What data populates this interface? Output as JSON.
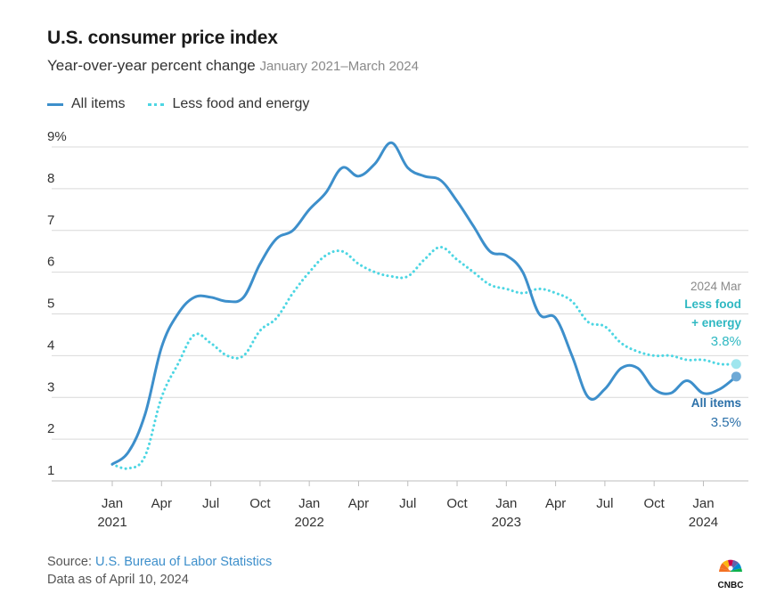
{
  "header": {
    "title": "U.S. consumer price index",
    "subtitle": "Year-over-year percent change",
    "subtitle_range": "January 2021–March 2024"
  },
  "legend": {
    "all_items": "All items",
    "core": "Less food and energy"
  },
  "annotations": {
    "date": "2024 Mar",
    "core_label_1": "Less food",
    "core_label_2": "+ energy",
    "core_value": "3.8%",
    "all_label": "All items",
    "all_value": "3.5%"
  },
  "footer": {
    "source_prefix": "Source: ",
    "source_name": "U.S. Bureau of Labor Statistics",
    "date_note": "Data as of April 10, 2024"
  },
  "logo": {
    "text": "CNBC"
  },
  "colors": {
    "all_items": "#3d8fcb",
    "core": "#4dd6e3",
    "all_label": "#2a6fa8",
    "core_label": "#2fb8c2",
    "grid": "#d9d9d9"
  },
  "chart_data": {
    "type": "line",
    "title": "U.S. consumer price index",
    "subtitle": "Year-over-year percent change January 2021–March 2024",
    "ylabel": "",
    "xlabel": "",
    "ylim": [
      1,
      9
    ],
    "yticks": [
      1,
      2,
      3,
      4,
      5,
      6,
      7,
      8,
      9
    ],
    "ytick_labels": [
      "1",
      "2",
      "3",
      "4",
      "5",
      "6",
      "7",
      "8",
      "9%"
    ],
    "xticks": [
      {
        "index": 0,
        "label": "Jan",
        "year": "2021"
      },
      {
        "index": 3,
        "label": "Apr",
        "year": ""
      },
      {
        "index": 6,
        "label": "Jul",
        "year": ""
      },
      {
        "index": 9,
        "label": "Oct",
        "year": ""
      },
      {
        "index": 12,
        "label": "Jan",
        "year": "2022"
      },
      {
        "index": 15,
        "label": "Apr",
        "year": ""
      },
      {
        "index": 18,
        "label": "Jul",
        "year": ""
      },
      {
        "index": 21,
        "label": "Oct",
        "year": ""
      },
      {
        "index": 24,
        "label": "Jan",
        "year": "2023"
      },
      {
        "index": 27,
        "label": "Apr",
        "year": ""
      },
      {
        "index": 30,
        "label": "Jul",
        "year": ""
      },
      {
        "index": 33,
        "label": "Oct",
        "year": ""
      },
      {
        "index": 36,
        "label": "Jan",
        "year": "2024"
      }
    ],
    "x": [
      "2021-01",
      "2021-02",
      "2021-03",
      "2021-04",
      "2021-05",
      "2021-06",
      "2021-07",
      "2021-08",
      "2021-09",
      "2021-10",
      "2021-11",
      "2021-12",
      "2022-01",
      "2022-02",
      "2022-03",
      "2022-04",
      "2022-05",
      "2022-06",
      "2022-07",
      "2022-08",
      "2022-09",
      "2022-10",
      "2022-11",
      "2022-12",
      "2023-01",
      "2023-02",
      "2023-03",
      "2023-04",
      "2023-05",
      "2023-06",
      "2023-07",
      "2023-08",
      "2023-09",
      "2023-10",
      "2023-11",
      "2023-12",
      "2024-01",
      "2024-02",
      "2024-03"
    ],
    "series": [
      {
        "name": "All items",
        "style": "solid",
        "values": [
          1.4,
          1.7,
          2.6,
          4.2,
          5.0,
          5.4,
          5.4,
          5.3,
          5.4,
          6.2,
          6.8,
          7.0,
          7.5,
          7.9,
          8.5,
          8.3,
          8.6,
          9.1,
          8.5,
          8.3,
          8.2,
          7.7,
          7.1,
          6.5,
          6.4,
          6.0,
          5.0,
          4.9,
          4.0,
          3.0,
          3.2,
          3.7,
          3.7,
          3.2,
          3.1,
          3.4,
          3.1,
          3.2,
          3.5
        ]
      },
      {
        "name": "Less food and energy",
        "style": "dotted",
        "values": [
          1.4,
          1.3,
          1.6,
          3.0,
          3.8,
          4.5,
          4.3,
          4.0,
          4.0,
          4.6,
          4.9,
          5.5,
          6.0,
          6.4,
          6.5,
          6.2,
          6.0,
          5.9,
          5.9,
          6.3,
          6.6,
          6.3,
          6.0,
          5.7,
          5.6,
          5.5,
          5.6,
          5.5,
          5.3,
          4.8,
          4.7,
          4.3,
          4.1,
          4.0,
          4.0,
          3.9,
          3.9,
          3.8,
          3.8
        ]
      }
    ],
    "endpoint_labels": {
      "all_items": "3.5%",
      "core": "3.8%"
    }
  }
}
